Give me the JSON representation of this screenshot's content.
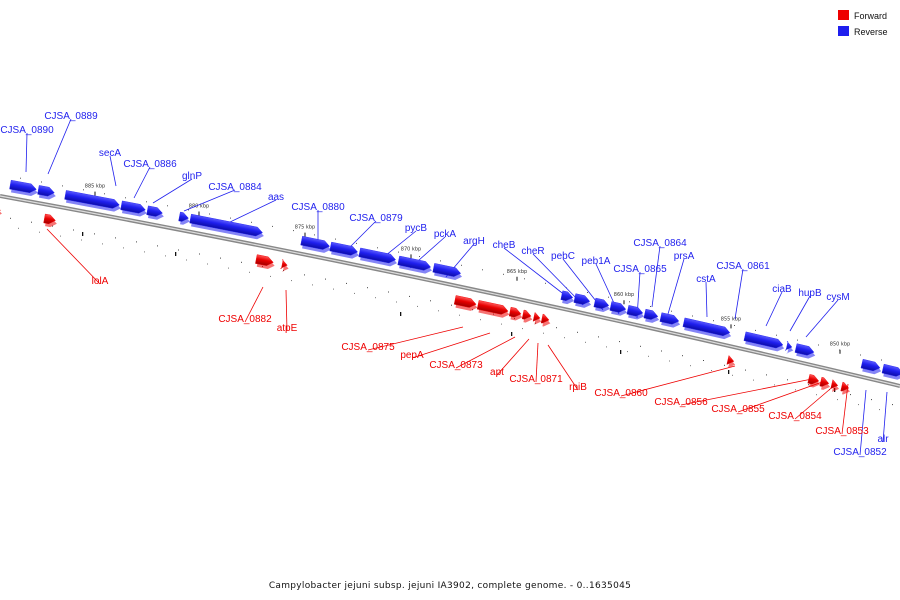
{
  "legend": [
    {
      "label": "Forward",
      "color": "#ee0000"
    },
    {
      "label": "Reverse",
      "color": "#1f1fee"
    }
  ],
  "caption": "Campylobacter jejuni subsp. jejuni IA3902, complete genome. - 0..1635045",
  "scale_labels": [
    "885 kbp",
    "880 kbp",
    "875 kbp",
    "870 kbp",
    "865 kbp",
    "860 kbp",
    "855 kbp",
    "850 kbp"
  ],
  "reverse_labels": [
    "CJSA_0890",
    "CJSA_0889",
    "secA",
    "CJSA_0886",
    "glnP",
    "CJSA_0884",
    "aas",
    "CJSA_0880",
    "CJSA_0879",
    "pycB",
    "pckA",
    "argH",
    "cheB",
    "cheR",
    "pebC",
    "peb1A",
    "CJSA_0864",
    "CJSA_0865",
    "prsA",
    "cstA",
    "CJSA_0861",
    "ciaB",
    "hupB",
    "cysM",
    "alr",
    "CJSA_0852"
  ],
  "forward_labels": [
    "lolA",
    "CJSA_0882",
    "atpE",
    "CJSA_0875",
    "pepA",
    "CJSA_0873",
    "apt",
    "CJSA_0871",
    "rpiB",
    "CJSA_0860",
    "CJSA_0856",
    "CJSA_0855",
    "CJSA_0854",
    "CJSA_0853"
  ]
}
